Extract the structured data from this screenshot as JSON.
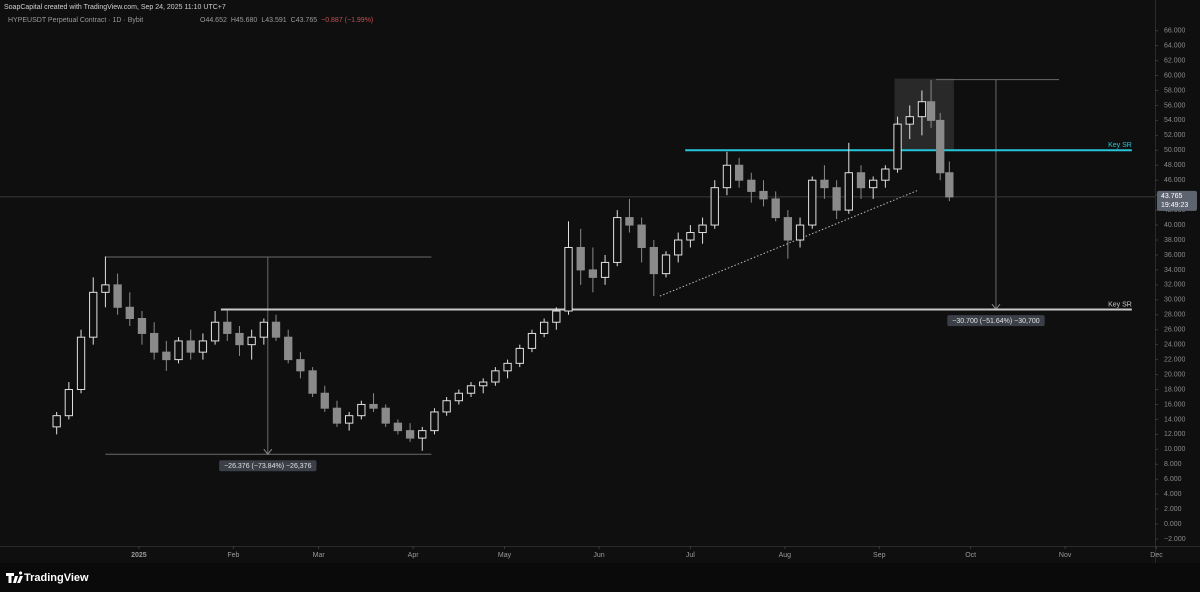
{
  "header": {
    "credit": "SoapCapital created with TradingView.com, Sep 24, 2025 11:10 UTC+7",
    "symbol": "HYPEUSDT Perpetual Contract · 1D · Bybit",
    "ohlc": [
      "O44.652",
      "H45.680",
      "L43.591",
      "C43.765",
      "−0.887 (−1.99%)"
    ]
  },
  "footer": {
    "logo": "TradingView"
  },
  "chart_data": {
    "type": "candlestick",
    "up_color": "#e0e0e0",
    "down_color": "#8a8a8a",
    "grid": false,
    "xlim": [
      -45.6,
      333.5
    ],
    "ylim": [
      -2.8,
      68.1
    ],
    "xticks": [
      {
        "value": 0,
        "label": "2025"
      },
      {
        "value": 31,
        "label": "Feb"
      },
      {
        "value": 59,
        "label": "Mar"
      },
      {
        "value": 90,
        "label": "Apr"
      },
      {
        "value": 120,
        "label": "May"
      },
      {
        "value": 151,
        "label": "Jun"
      },
      {
        "value": 181,
        "label": "Jul"
      },
      {
        "value": 212,
        "label": "Aug"
      },
      {
        "value": 243,
        "label": "Sep"
      },
      {
        "value": 273,
        "label": "Oct"
      },
      {
        "value": 304,
        "label": "Nov"
      },
      {
        "value": 334,
        "label": "Dec"
      }
    ],
    "yticks": [
      {
        "value": -2,
        "label": "−2.000"
      },
      {
        "value": 0,
        "label": "0.000"
      },
      {
        "value": 2,
        "label": "2.000"
      },
      {
        "value": 4,
        "label": "4.000"
      },
      {
        "value": 6,
        "label": "6.000"
      },
      {
        "value": 8,
        "label": "8.000"
      },
      {
        "value": 10,
        "label": "10.000"
      },
      {
        "value": 12,
        "label": "12.000"
      },
      {
        "value": 14,
        "label": "14.000"
      },
      {
        "value": 16,
        "label": "16.000"
      },
      {
        "value": 18,
        "label": "18.000"
      },
      {
        "value": 20,
        "label": "20.000"
      },
      {
        "value": 22,
        "label": "22.000"
      },
      {
        "value": 24,
        "label": "24.000"
      },
      {
        "value": 26,
        "label": "26.000"
      },
      {
        "value": 28,
        "label": "28.000"
      },
      {
        "value": 30,
        "label": "30.000"
      },
      {
        "value": 32,
        "label": "32.000"
      },
      {
        "value": 34,
        "label": "34.000"
      },
      {
        "value": 36,
        "label": "36.000"
      },
      {
        "value": 38,
        "label": "38.000"
      },
      {
        "value": 40,
        "label": "40.000"
      },
      {
        "value": 42,
        "label": "42.000"
      },
      {
        "value": 44,
        "label": "44.000"
      },
      {
        "value": 46,
        "label": "46.000"
      },
      {
        "value": 48,
        "label": "48.000"
      },
      {
        "value": 50,
        "label": "50.000"
      },
      {
        "value": 52,
        "label": "52.000"
      },
      {
        "value": 54,
        "label": "54.000"
      },
      {
        "value": 56,
        "label": "56.000"
      },
      {
        "value": 58,
        "label": "58.000"
      },
      {
        "value": 60,
        "label": "60.000"
      },
      {
        "value": 62,
        "label": "62.000"
      },
      {
        "value": 64,
        "label": "64.000"
      },
      {
        "value": 66,
        "label": "66.000"
      }
    ],
    "x": [
      -27,
      -23,
      -19,
      -15,
      -11,
      -7,
      -3,
      1,
      5,
      9,
      13,
      17,
      21,
      25,
      29,
      33,
      37,
      41,
      45,
      49,
      53,
      57,
      61,
      65,
      69,
      73,
      77,
      81,
      85,
      89,
      93,
      97,
      101,
      105,
      109,
      113,
      117,
      121,
      125,
      129,
      133,
      137,
      141,
      145,
      149,
      153,
      157,
      161,
      165,
      169,
      173,
      177,
      181,
      185,
      189,
      193,
      197,
      201,
      205,
      209,
      213,
      217,
      221,
      225,
      229,
      233,
      237,
      241,
      245,
      249,
      253,
      257,
      260,
      263,
      266
    ],
    "open": [
      13,
      14.5,
      18,
      25,
      31,
      32,
      29,
      27.5,
      25.5,
      23,
      22,
      24.5,
      23,
      24.5,
      27,
      25.5,
      24,
      25,
      27,
      25,
      22,
      20.5,
      17.5,
      15.5,
      13.5,
      14.5,
      16,
      15.5,
      13.5,
      12.5,
      11.5,
      12.5,
      15,
      16.5,
      17.5,
      18.5,
      19,
      20.5,
      21.5,
      23.5,
      25.5,
      27,
      28.5,
      37,
      34,
      33,
      35,
      41,
      40,
      37,
      33.5,
      36,
      38,
      39,
      40,
      45,
      48,
      46,
      44.5,
      43.5,
      41,
      38,
      40,
      46,
      45,
      42,
      47,
      45,
      46,
      47.5,
      53.5,
      54.5,
      56.5,
      54,
      47
    ],
    "high": [
      15,
      19,
      26,
      33,
      35.8,
      33.5,
      31,
      28.5,
      27,
      24.5,
      25,
      26,
      25.5,
      28.5,
      28.6,
      26.5,
      26,
      27.5,
      28,
      26,
      23,
      21,
      18.5,
      16.5,
      15,
      16.5,
      17.5,
      16,
      14,
      13.5,
      13,
      15.5,
      17,
      18,
      19,
      19.5,
      21,
      22,
      24,
      26,
      27.5,
      29,
      40.5,
      39.5,
      37,
      36,
      42,
      43.5,
      41,
      38,
      36.5,
      39,
      40,
      41,
      46,
      49.8,
      49,
      47,
      46,
      44.5,
      42,
      41,
      46.5,
      48,
      46,
      51,
      48,
      46.5,
      48,
      54.5,
      56,
      58,
      59.4,
      55,
      48.5
    ],
    "low": [
      12,
      14,
      17.5,
      24,
      29,
      28,
      26.5,
      24,
      22,
      20.5,
      21.5,
      22,
      22,
      24,
      24.5,
      22.5,
      22,
      24,
      24.5,
      21.5,
      19.5,
      17,
      15,
      13,
      12.5,
      14,
      15,
      13,
      12,
      11,
      9.8,
      12,
      14.5,
      16,
      17,
      17.5,
      18.5,
      19.5,
      21,
      23,
      25,
      26,
      28,
      32,
      31,
      32,
      34.5,
      39,
      35,
      30.5,
      33,
      35,
      37,
      37.5,
      39.5,
      44,
      45,
      43,
      42.5,
      40.5,
      35.5,
      37,
      39.5,
      43.5,
      40.8,
      41.5,
      43.5,
      43.5,
      45,
      47,
      51.5,
      52,
      53,
      46,
      43.2
    ],
    "close": [
      14.5,
      18,
      25,
      31,
      32,
      29,
      27.5,
      25.5,
      23,
      22,
      24.5,
      23,
      24.5,
      27,
      25.5,
      24,
      25,
      27,
      25,
      22,
      20.5,
      17.5,
      15.5,
      13.5,
      14.5,
      16,
      15.5,
      13.5,
      12.5,
      11.5,
      12.5,
      15,
      16.5,
      17.5,
      18.5,
      19,
      20.5,
      21.5,
      23.5,
      25.5,
      27,
      28.5,
      37,
      34,
      33,
      35,
      41,
      40,
      37,
      33.5,
      36,
      38,
      39,
      40,
      45,
      48,
      46,
      44.5,
      43.5,
      41,
      38,
      40,
      46,
      45,
      42,
      47,
      45,
      46,
      47.5,
      53.5,
      54.5,
      56.5,
      54,
      47,
      43.765
    ],
    "last_price": {
      "value": 43.765,
      "label": "43.765",
      "countdown": "19:49:23",
      "color": "#5d6470"
    },
    "levels": [
      {
        "label": "Key SR",
        "value": 50.0,
        "x": [
          179.3,
          325.9
        ],
        "color": "#26c6da"
      },
      {
        "label": "Key SR",
        "value": 28.7,
        "x": [
          26.9,
          325.9
        ],
        "color": "#c8c8c8"
      }
    ],
    "measures": [
      {
        "label": "−26.376 (−73.84%) −26,376",
        "from": 35.72,
        "to": 9.344,
        "x": [
          -11,
          96
        ],
        "x_line": 42.3
      },
      {
        "label": "−30.700 (−51.64%) −30,700",
        "from": 59.45,
        "to": 28.75,
        "x": [
          261.6,
          302
        ],
        "x_line": 281.3
      }
    ],
    "highlight": {
      "x": [
        248,
        267.5
      ],
      "y": [
        50,
        59.6
      ]
    },
    "trendline": {
      "x": [
        171,
        255.4
      ],
      "y": [
        30.5,
        44.6
      ]
    }
  }
}
